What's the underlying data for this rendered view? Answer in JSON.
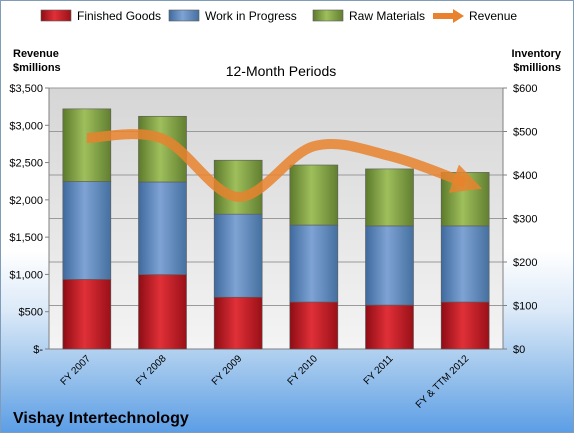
{
  "chart_data": {
    "type": "bar",
    "title": "12-Month Periods",
    "footer_title": "Vishay Intertechnology",
    "left_axis_label": [
      "Revenue",
      "$millions"
    ],
    "right_axis_label": [
      "Inventory",
      "$millions"
    ],
    "categories": [
      "FY 2007",
      "FY 2008",
      "FY 2009",
      "FY 2010",
      "FY 2011",
      "FY & TTM 2012"
    ],
    "stacked": true,
    "inventory_series": [
      {
        "name": "Finished Goods",
        "axis": "right",
        "color": "#c0141e",
        "values": [
          160,
          171,
          119,
          108,
          101,
          108
        ]
      },
      {
        "name": "Work in Progress",
        "axis": "right",
        "color": "#4f81bd",
        "values": [
          225,
          213,
          191,
          177,
          182,
          175
        ]
      },
      {
        "name": "Raw Materials",
        "axis": "right",
        "color": "#77933c",
        "values": [
          167,
          151,
          124,
          138,
          131,
          123
        ]
      }
    ],
    "line_series": {
      "name": "Revenue",
      "axis": "left",
      "color": "#e8822e",
      "values": [
        2830,
        2820,
        2040,
        2720,
        2590,
        2230
      ]
    },
    "left_axis": {
      "min": 0,
      "max": 3500,
      "step": 500,
      "tick_labels": [
        "$-",
        "$500",
        "$1,000",
        "$1,500",
        "$2,000",
        "$2,500",
        "$3,000",
        "$3,500"
      ]
    },
    "right_axis": {
      "min": 0,
      "max": 600,
      "step": 100,
      "tick_labels": [
        "$0",
        "$100",
        "$200",
        "$300",
        "$400",
        "$500",
        "$600"
      ]
    },
    "legend_position": "top",
    "grid": true
  }
}
